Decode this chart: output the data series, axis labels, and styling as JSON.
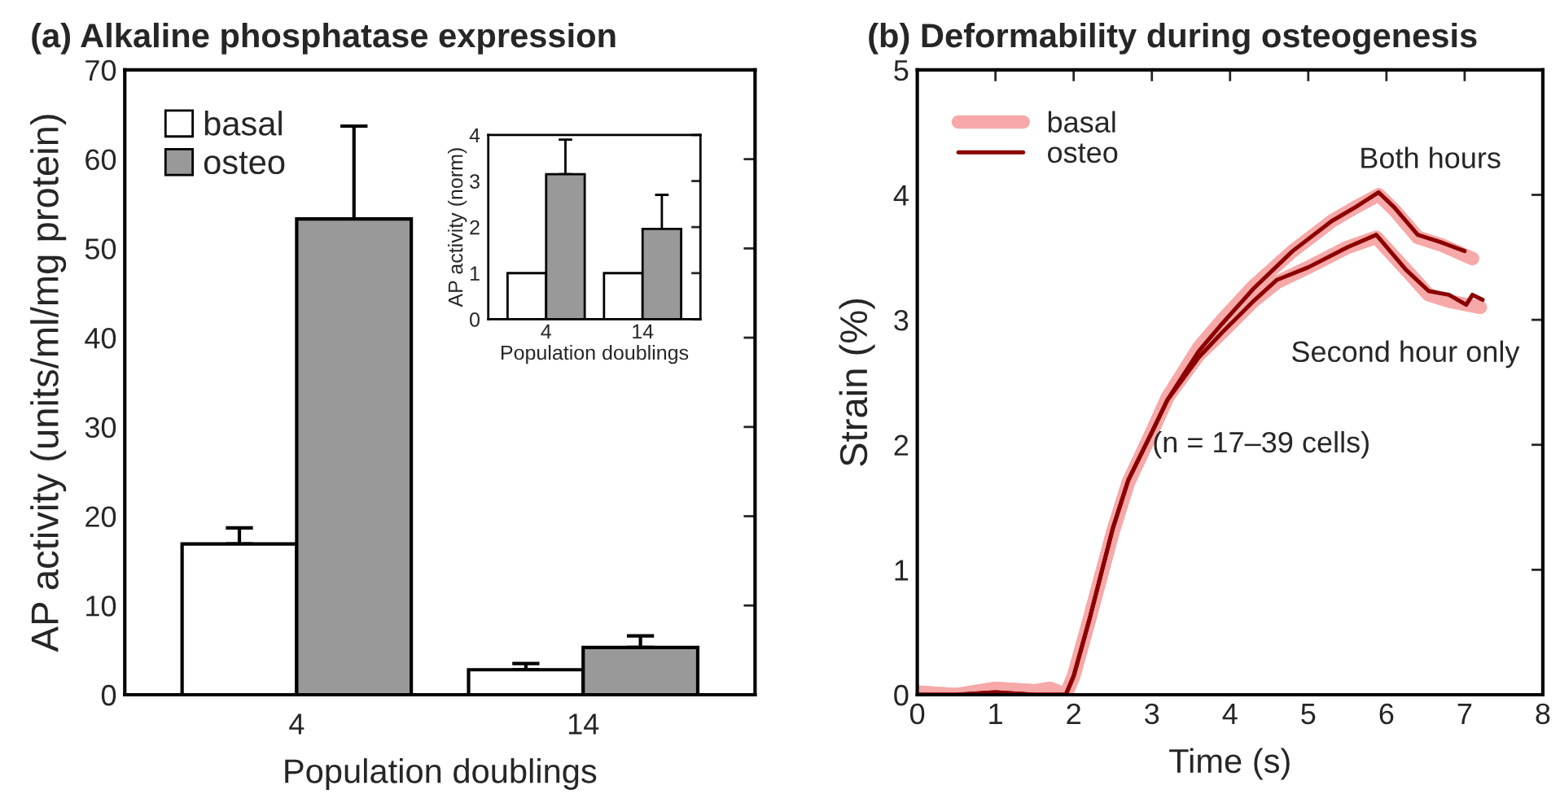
{
  "chart_data": [
    {
      "type": "bar",
      "title": "(a) Alkaline phosphatase expression",
      "xlabel": "Population doublings",
      "ylabel": "AP activity (units/ml/mg protein)",
      "categories": [
        "4",
        "14"
      ],
      "ylim": [
        0,
        70
      ],
      "yticks": [
        0,
        10,
        20,
        30,
        40,
        50,
        60,
        70
      ],
      "legend": "top left",
      "grid": false,
      "series": [
        {
          "name": "basal",
          "color": "#ffffff",
          "values": [
            16.9,
            2.8
          ],
          "errors": [
            [
              16.9,
              18.7
            ],
            [
              2.8,
              3.5
            ]
          ]
        },
        {
          "name": "osteo",
          "color": "#999999",
          "values": [
            53.3,
            5.3
          ],
          "errors": [
            [
              53.3,
              63.7
            ],
            [
              5.3,
              6.6
            ]
          ]
        }
      ]
    },
    {
      "type": "bar",
      "xlabel": "Population doublings",
      "ylabel": "AP activity (norm)",
      "categories": [
        "4",
        "14"
      ],
      "ylim": [
        0,
        4
      ],
      "yticks": [
        0,
        1,
        2,
        3,
        4
      ],
      "legend": false,
      "grid": false,
      "series": [
        {
          "color": "#ffffff",
          "values": [
            1,
            1
          ]
        },
        {
          "color": "#999999",
          "values": [
            3.15,
            1.96
          ],
          "errors": [
            [
              3.15,
              3.9
            ],
            [
              1.96,
              2.7
            ]
          ]
        }
      ]
    },
    {
      "type": "line",
      "title": "(b) Deformability during osteogenesis",
      "xlabel": "Time (s)",
      "ylabel": "Strain (%)",
      "xlim": [
        0,
        8
      ],
      "xticks": [
        0,
        1,
        2,
        3,
        4,
        5,
        6,
        7,
        8
      ],
      "ylim": [
        0,
        5
      ],
      "yticks": [
        0,
        1,
        2,
        3,
        4,
        5
      ],
      "legend": "top left",
      "grid": false,
      "marker": "none",
      "line_style": "solid",
      "annotations": [
        "Both hours",
        "Second hour only",
        "(n = 17–39 cells)"
      ],
      "series": [
        {
          "name": "basal",
          "color": "#f7a8a8",
          "x": [
            0,
            0.5,
            1,
            1.5,
            1.7,
            1.9,
            2.0,
            2.2,
            2.5,
            2.7,
            3.0,
            3.2,
            3.6,
            3.9,
            4.3,
            4.8,
            5.3,
            5.6,
            5.9,
            6.1,
            6.4,
            6.7,
            7.1
          ],
          "values": [
            0.02,
            0,
            0.05,
            0.03,
            0.05,
            0,
            0.15,
            0.6,
            1.3,
            1.7,
            2.1,
            2.38,
            2.78,
            3.0,
            3.27,
            3.55,
            3.79,
            3.9,
            4.0,
            3.88,
            3.66,
            3.6,
            3.49
          ]
        },
        {
          "color": "#f7a8a8",
          "x": [
            0,
            0.5,
            1,
            1.5,
            1.7,
            1.9,
            2.0,
            2.2,
            2.5,
            2.7,
            3.0,
            3.2,
            3.6,
            3.9,
            4.3,
            4.6,
            5.0,
            5.5,
            5.87,
            6.25,
            6.54,
            6.8,
            7.2
          ],
          "values": [
            0.02,
            0,
            0.05,
            0.03,
            0.05,
            0,
            0.15,
            0.6,
            1.3,
            1.7,
            2.1,
            2.38,
            2.72,
            2.9,
            3.15,
            3.3,
            3.42,
            3.58,
            3.66,
            3.4,
            3.2,
            3.15,
            3.1
          ]
        },
        {
          "name": "osteo",
          "color": "#8b0000",
          "x": [
            0,
            0.5,
            1,
            1.5,
            1.9,
            2.0,
            2.2,
            2.5,
            2.7,
            3.0,
            3.2,
            3.6,
            3.9,
            4.3,
            4.8,
            5.3,
            5.6,
            5.9,
            6.1,
            6.4,
            6.7,
            7.0
          ],
          "values": [
            0,
            0,
            0.02,
            0,
            0,
            0.15,
            0.6,
            1.33,
            1.72,
            2.1,
            2.36,
            2.75,
            2.97,
            3.25,
            3.55,
            3.79,
            3.9,
            4.02,
            3.9,
            3.68,
            3.62,
            3.55
          ]
        },
        {
          "color": "#8b0000",
          "x": [
            0,
            0.5,
            1,
            1.5,
            1.9,
            2.0,
            2.2,
            2.5,
            2.7,
            3.0,
            3.2,
            3.6,
            3.9,
            4.3,
            4.6,
            5.0,
            5.5,
            5.87,
            6.25,
            6.54,
            6.8,
            7.02,
            7.1,
            7.23
          ],
          "values": [
            0,
            0,
            0.02,
            0,
            0,
            0.15,
            0.6,
            1.33,
            1.72,
            2.1,
            2.36,
            2.7,
            2.9,
            3.15,
            3.32,
            3.42,
            3.58,
            3.68,
            3.4,
            3.23,
            3.2,
            3.12,
            3.2,
            3.16
          ]
        }
      ]
    }
  ]
}
